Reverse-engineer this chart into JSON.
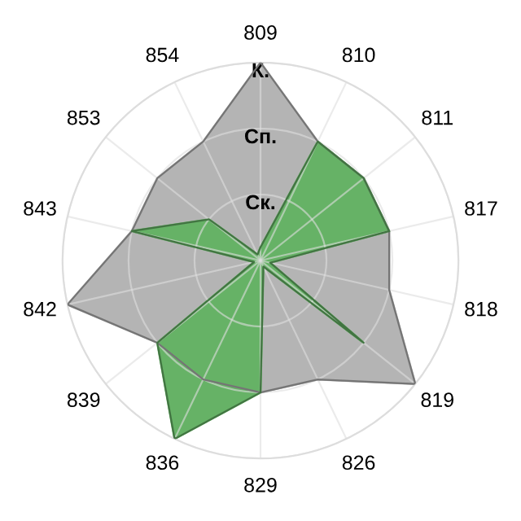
{
  "chart_data": {
    "type": "radar",
    "categories": [
      "809",
      "810",
      "811",
      "817",
      "818",
      "819",
      "826",
      "829",
      "836",
      "839",
      "842",
      "843",
      "853",
      "854"
    ],
    "ylim": [
      0,
      3
    ],
    "yticks": [
      {
        "value": 1,
        "label": "Ск."
      },
      {
        "value": 2,
        "label": "Сп."
      },
      {
        "value": 3,
        "label": "К."
      }
    ],
    "grid": true,
    "series": [
      {
        "color": "#b4b4b4",
        "values": [
          3.0,
          2.0,
          2.0,
          2.0,
          2.0,
          3.0,
          2.0,
          2.0,
          2.0,
          2.0,
          3.0,
          2.0,
          2.0,
          2.0
        ]
      },
      {
        "color": "#66b266",
        "values": [
          0.2,
          2.0,
          2.0,
          2.0,
          0.15,
          2.0,
          0.1,
          2.0,
          3.0,
          2.0,
          0.1,
          2.0,
          1.0,
          0.1
        ]
      }
    ]
  }
}
